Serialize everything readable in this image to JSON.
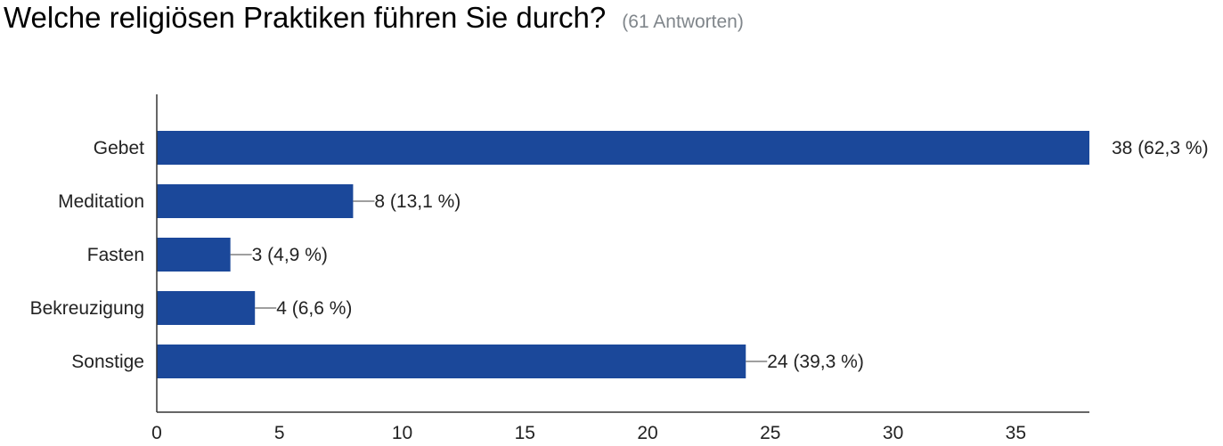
{
  "header": {
    "title": "Welche religiösen Praktiken führen Sie durch?",
    "subtitle": "(61 Antworten)"
  },
  "colors": {
    "bar": "#1b489a",
    "axis": "#333333",
    "leader": "#666666",
    "text": "#222222"
  },
  "chart_data": {
    "type": "bar",
    "orientation": "horizontal",
    "title": "Welche religiösen Praktiken führen Sie durch?",
    "subtitle": "(61 Antworten)",
    "categories": [
      "Gebet",
      "Meditation",
      "Fasten",
      "Bekreuzigung",
      "Sonstige"
    ],
    "values": [
      38,
      8,
      3,
      4,
      24
    ],
    "data_labels": [
      "38 (62,3 %)",
      "8 (13,1 %)",
      "3 (4,9 %)",
      "4 (6,6 %)",
      "24 (39,3 %)"
    ],
    "xlim": [
      0,
      38
    ],
    "x_ticks": [
      0,
      5,
      10,
      15,
      20,
      25,
      30,
      35
    ],
    "xlabel": "",
    "ylabel": "",
    "grid": false,
    "legend": "none"
  }
}
